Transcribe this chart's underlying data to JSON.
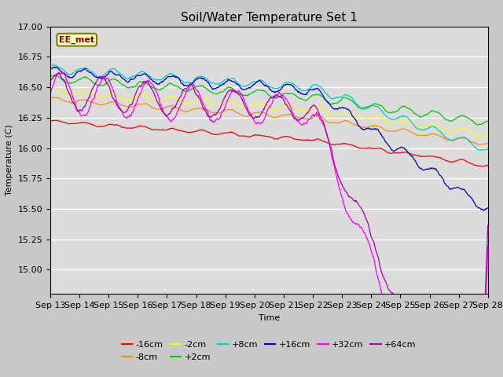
{
  "title": "Soil/Water Temperature Set 1",
  "xlabel": "Time",
  "ylabel": "Temperature (C)",
  "ylim": [
    14.8,
    17.0
  ],
  "annotation": "EE_met",
  "series": [
    {
      "label": "-16cm",
      "color": "#FF0000"
    },
    {
      "label": "-8cm",
      "color": "#FF8C00"
    },
    {
      "label": "-2cm",
      "color": "#FFFF00"
    },
    {
      "label": "+2cm",
      "color": "#00CC00"
    },
    {
      "label": "+8cm",
      "color": "#00CCCC"
    },
    {
      "label": "+16cm",
      "color": "#0000CC"
    },
    {
      "label": "+32cm",
      "color": "#FF00FF"
    },
    {
      "label": "+64cm",
      "color": "#AA00AA"
    }
  ],
  "xtick_labels": [
    "Sep 13",
    "Sep 14",
    "Sep 15",
    "Sep 16",
    "Sep 17",
    "Sep 18",
    "Sep 19",
    "Sep 20",
    "Sep 21",
    "Sep 22",
    "Sep 23",
    "Sep 24",
    "Sep 25",
    "Sep 26",
    "Sep 27",
    "Sep 28"
  ],
  "bg_color": "#DCDCDC",
  "grid_color": "#FFFFFF",
  "title_fontsize": 11,
  "label_fontsize": 8,
  "tick_fontsize": 8
}
